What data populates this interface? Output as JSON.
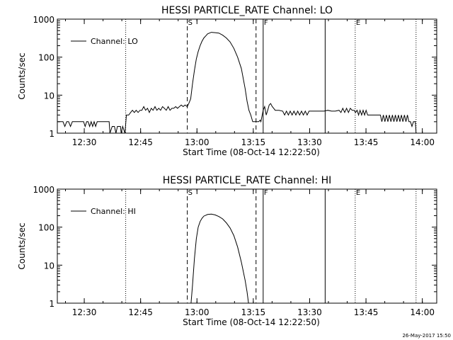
{
  "footer_timestamp": "26-May-2017 15:50",
  "chart_data": [
    {
      "type": "line",
      "title": "HESSI PARTICLE_RATE Channel: LO",
      "xlabel": "Start Time (08-Oct-14 12:22:50)",
      "ylabel": "Counts/sec",
      "y_scale": "log",
      "ylim": [
        1,
        1000
      ],
      "y_tick_labels": [
        "1",
        "10",
        "100",
        "1000"
      ],
      "x_tick_labels": [
        "12:30",
        "12:45",
        "13:00",
        "13:15",
        "13:30",
        "13:45",
        "14:00"
      ],
      "x_tick_values_min": [
        7.17,
        22.17,
        37.17,
        52.17,
        67.17,
        82.17,
        97.17
      ],
      "xlim_min": [
        0,
        101
      ],
      "legend": {
        "label": "Channel: LO",
        "position": "top-left"
      },
      "markers": [
        {
          "t": 34.6,
          "style": "dashed",
          "label": "S"
        },
        {
          "t": 52.9,
          "style": "dashed",
          "label": ""
        },
        {
          "t": 54.8,
          "style": "solid",
          "label": "F"
        },
        {
          "t": 71.3,
          "style": "solid",
          "label": ""
        },
        {
          "t": 18.2,
          "style": "dotted",
          "label": ""
        },
        {
          "t": 79.3,
          "style": "dotted",
          "label": "E"
        },
        {
          "t": 95.5,
          "style": "dotted",
          "label": ""
        }
      ],
      "series": [
        {
          "name": "Channel: LO",
          "points": [
            [
              0,
              2
            ],
            [
              1.5,
              2
            ],
            [
              2,
              1.5
            ],
            [
              2.5,
              2
            ],
            [
              3,
              2
            ],
            [
              3.5,
              1.5
            ],
            [
              4,
              2
            ],
            [
              7,
              2
            ],
            [
              7.4,
              1.5
            ],
            [
              7.8,
              2
            ],
            [
              8.2,
              2
            ],
            [
              8.6,
              1.5
            ],
            [
              9,
              2
            ],
            [
              9.4,
              1.5
            ],
            [
              9.8,
              2
            ],
            [
              10.2,
              1.5
            ],
            [
              10.6,
              2
            ],
            [
              13.8,
              2
            ],
            [
              14,
              1
            ],
            [
              14.6,
              1.5
            ],
            [
              15.2,
              1.5
            ],
            [
              15.6,
              1
            ],
            [
              16,
              1.5
            ],
            [
              16.8,
              1.5
            ],
            [
              17,
              1
            ],
            [
              17.4,
              1.5
            ],
            [
              18,
              1
            ],
            [
              18.4,
              3
            ],
            [
              19,
              3
            ],
            [
              19.5,
              3.5
            ],
            [
              20,
              4
            ],
            [
              20.5,
              3.5
            ],
            [
              21,
              4
            ],
            [
              21.5,
              3.5
            ],
            [
              22,
              4
            ],
            [
              22.5,
              4
            ],
            [
              23,
              5
            ],
            [
              23.5,
              4
            ],
            [
              24,
              4.5
            ],
            [
              24.5,
              3.5
            ],
            [
              25,
              4.5
            ],
            [
              25.5,
              4
            ],
            [
              26,
              5
            ],
            [
              26.5,
              4
            ],
            [
              27,
              4.5
            ],
            [
              27.5,
              4
            ],
            [
              28,
              5
            ],
            [
              28.5,
              4.5
            ],
            [
              29,
              4
            ],
            [
              29.5,
              5
            ],
            [
              30,
              4
            ],
            [
              30.5,
              4.5
            ],
            [
              31,
              4.5
            ],
            [
              31.5,
              5
            ],
            [
              32,
              4.5
            ],
            [
              32.5,
              5
            ],
            [
              33,
              5.5
            ],
            [
              33.5,
              5
            ],
            [
              34,
              5.5
            ],
            [
              34.6,
              5
            ],
            [
              35,
              6
            ],
            [
              35.5,
              8
            ],
            [
              36,
              20
            ],
            [
              36.5,
              45
            ],
            [
              37,
              90
            ],
            [
              37.5,
              140
            ],
            [
              38,
              200
            ],
            [
              38.5,
              260
            ],
            [
              39,
              320
            ],
            [
              39.5,
              360
            ],
            [
              40,
              410
            ],
            [
              41,
              450
            ],
            [
              42,
              440
            ],
            [
              43,
              430
            ],
            [
              44,
              380
            ],
            [
              45,
              320
            ],
            [
              46,
              250
            ],
            [
              47,
              170
            ],
            [
              48,
              100
            ],
            [
              49,
              50
            ],
            [
              50,
              15
            ],
            [
              50.5,
              7
            ],
            [
              51,
              4
            ],
            [
              51.5,
              3
            ],
            [
              52,
              2
            ],
            [
              52.9,
              2
            ],
            [
              53.6,
              2
            ],
            [
              54,
              2.2
            ],
            [
              54.2,
              2
            ],
            [
              54.8,
              4
            ],
            [
              55.2,
              5
            ],
            [
              55.6,
              3
            ],
            [
              56,
              4
            ],
            [
              56.4,
              5.5
            ],
            [
              56.8,
              6
            ],
            [
              57.2,
              5
            ],
            [
              57.6,
              4.5
            ],
            [
              58,
              4
            ],
            [
              59,
              4
            ],
            [
              60,
              3.8
            ],
            [
              60.5,
              3
            ],
            [
              61,
              3.8
            ],
            [
              61.5,
              3
            ],
            [
              62,
              3.8
            ],
            [
              62.5,
              3
            ],
            [
              63,
              3.8
            ],
            [
              63.5,
              3
            ],
            [
              64,
              3.8
            ],
            [
              64.5,
              3
            ],
            [
              65,
              3.8
            ],
            [
              65.5,
              3
            ],
            [
              66,
              3.8
            ],
            [
              66.5,
              3
            ],
            [
              67,
              3.8
            ],
            [
              68,
              3.8
            ],
            [
              69,
              3.8
            ],
            [
              70,
              3.8
            ],
            [
              71,
              3.8
            ],
            [
              72,
              4
            ],
            [
              73,
              3.8
            ],
            [
              74,
              3.8
            ],
            [
              75,
              4
            ],
            [
              75.5,
              3.5
            ],
            [
              76,
              4.5
            ],
            [
              76.5,
              3.5
            ],
            [
              77,
              4.5
            ],
            [
              77.5,
              3.5
            ],
            [
              78,
              4.5
            ],
            [
              78.5,
              4
            ],
            [
              79,
              4
            ],
            [
              79.4,
              3.5
            ],
            [
              79.8,
              4
            ],
            [
              80.2,
              3
            ],
            [
              80.6,
              4
            ],
            [
              81,
              3
            ],
            [
              81.4,
              4
            ],
            [
              81.8,
              3
            ],
            [
              82.2,
              4
            ],
            [
              82.6,
              3
            ],
            [
              83,
              3
            ],
            [
              84,
              3
            ],
            [
              85,
              3
            ],
            [
              86,
              3
            ],
            [
              86.4,
              2
            ],
            [
              86.8,
              3
            ],
            [
              87.2,
              2
            ],
            [
              87.6,
              3
            ],
            [
              88,
              2
            ],
            [
              88.4,
              3
            ],
            [
              88.8,
              2
            ],
            [
              89.2,
              3
            ],
            [
              89.6,
              2
            ],
            [
              90,
              3
            ],
            [
              90.4,
              2
            ],
            [
              90.8,
              3
            ],
            [
              91.2,
              2
            ],
            [
              91.6,
              3
            ],
            [
              92,
              2
            ],
            [
              92.4,
              3
            ],
            [
              92.8,
              2
            ],
            [
              93.2,
              3
            ],
            [
              93.6,
              2
            ],
            [
              94,
              2
            ],
            [
              94.4,
              1.5
            ],
            [
              94.8,
              2
            ],
            [
              95.3,
              2
            ],
            [
              95.5,
              1
            ]
          ]
        }
      ]
    },
    {
      "type": "line",
      "title": "HESSI PARTICLE_RATE Channel: HI",
      "xlabel": "Start Time (08-Oct-14 12:22:50)",
      "ylabel": "Counts/sec",
      "y_scale": "log",
      "ylim": [
        1,
        1000
      ],
      "y_tick_labels": [
        "1",
        "10",
        "100",
        "1000"
      ],
      "x_tick_labels": [
        "12:30",
        "12:45",
        "13:00",
        "13:15",
        "13:30",
        "13:45",
        "14:00"
      ],
      "x_tick_values_min": [
        7.17,
        22.17,
        37.17,
        52.17,
        67.17,
        82.17,
        97.17
      ],
      "xlim_min": [
        0,
        101
      ],
      "legend": {
        "label": "Channel: HI",
        "position": "top-left"
      },
      "markers": [
        {
          "t": 34.6,
          "style": "dashed",
          "label": "S"
        },
        {
          "t": 52.9,
          "style": "dashed",
          "label": ""
        },
        {
          "t": 54.8,
          "style": "solid",
          "label": "F"
        },
        {
          "t": 71.3,
          "style": "solid",
          "label": ""
        },
        {
          "t": 18.2,
          "style": "dotted",
          "label": ""
        },
        {
          "t": 79.3,
          "style": "dotted",
          "label": "E"
        },
        {
          "t": 95.5,
          "style": "dotted",
          "label": ""
        }
      ],
      "series": [
        {
          "name": "Channel: HI",
          "points": [
            [
              35.6,
              1
            ],
            [
              36,
              3
            ],
            [
              36.5,
              15
            ],
            [
              37,
              50
            ],
            [
              37.5,
              100
            ],
            [
              38,
              140
            ],
            [
              38.5,
              170
            ],
            [
              39,
              195
            ],
            [
              40,
              215
            ],
            [
              41,
              220
            ],
            [
              42,
              210
            ],
            [
              43,
              190
            ],
            [
              44,
              165
            ],
            [
              45,
              130
            ],
            [
              46,
              95
            ],
            [
              47,
              60
            ],
            [
              48,
              30
            ],
            [
              49,
              12
            ],
            [
              50,
              4
            ],
            [
              50.5,
              2
            ],
            [
              50.9,
              1
            ]
          ]
        }
      ]
    }
  ]
}
